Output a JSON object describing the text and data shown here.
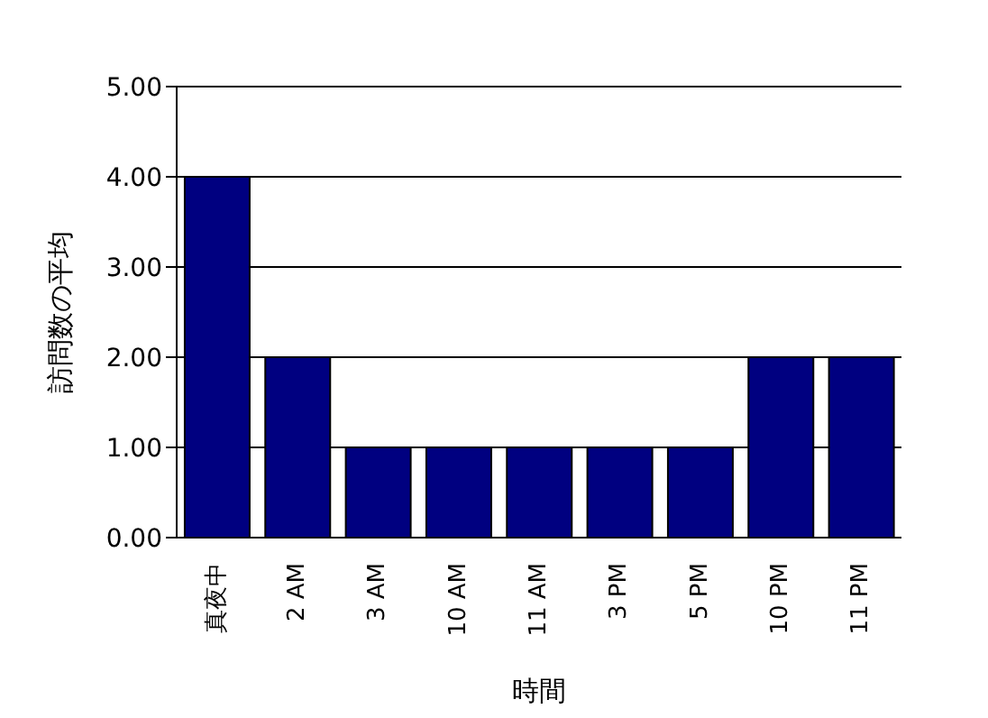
{
  "chart_data": {
    "type": "bar",
    "xlabel": "時間",
    "ylabel": "訪問数の平均",
    "categories": [
      "真夜中",
      "2 AM",
      "3 AM",
      "10 AM",
      "11 AM",
      "3 PM",
      "5 PM",
      "10 PM",
      "11 PM"
    ],
    "values": [
      4,
      2,
      1,
      1,
      1,
      1,
      1,
      2,
      2
    ],
    "color": "#000080",
    "ylim": [
      0,
      5
    ],
    "yticks": [
      {
        "value": 0,
        "label": "0.00"
      },
      {
        "value": 1,
        "label": "1.00"
      },
      {
        "value": 2,
        "label": "2.00"
      },
      {
        "value": 3,
        "label": "3.00"
      },
      {
        "value": 4,
        "label": "4.00"
      },
      {
        "value": 5,
        "label": "5.00"
      }
    ],
    "grid": "y",
    "legend": false
  }
}
